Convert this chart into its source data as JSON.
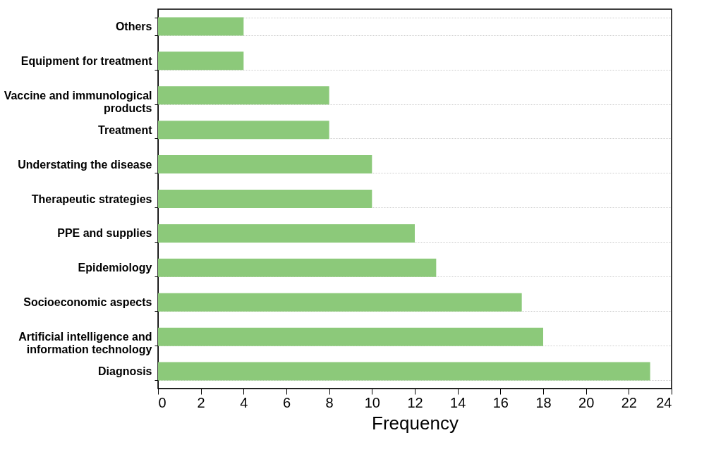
{
  "chart_data": {
    "type": "bar",
    "orientation": "horizontal",
    "xlabel": "Frequency",
    "categories": [
      "Others",
      "Equipment for treatment",
      "Vaccine and immunological products",
      "Treatment",
      "Understating the disease",
      "Therapeutic strategies",
      "PPE and supplies",
      "Epidemiology",
      "Socioeconomic aspects",
      "Artificial intelligence and information technology",
      "Diagnosis"
    ],
    "values": [
      4,
      4,
      8,
      8,
      10,
      10,
      12,
      13,
      17,
      18,
      23
    ],
    "color": "#8cc97a",
    "xlim": [
      0,
      24
    ],
    "xticks": [
      0,
      2,
      4,
      6,
      8,
      10,
      12,
      14,
      16,
      18,
      20,
      22,
      24
    ],
    "grid": "y"
  }
}
